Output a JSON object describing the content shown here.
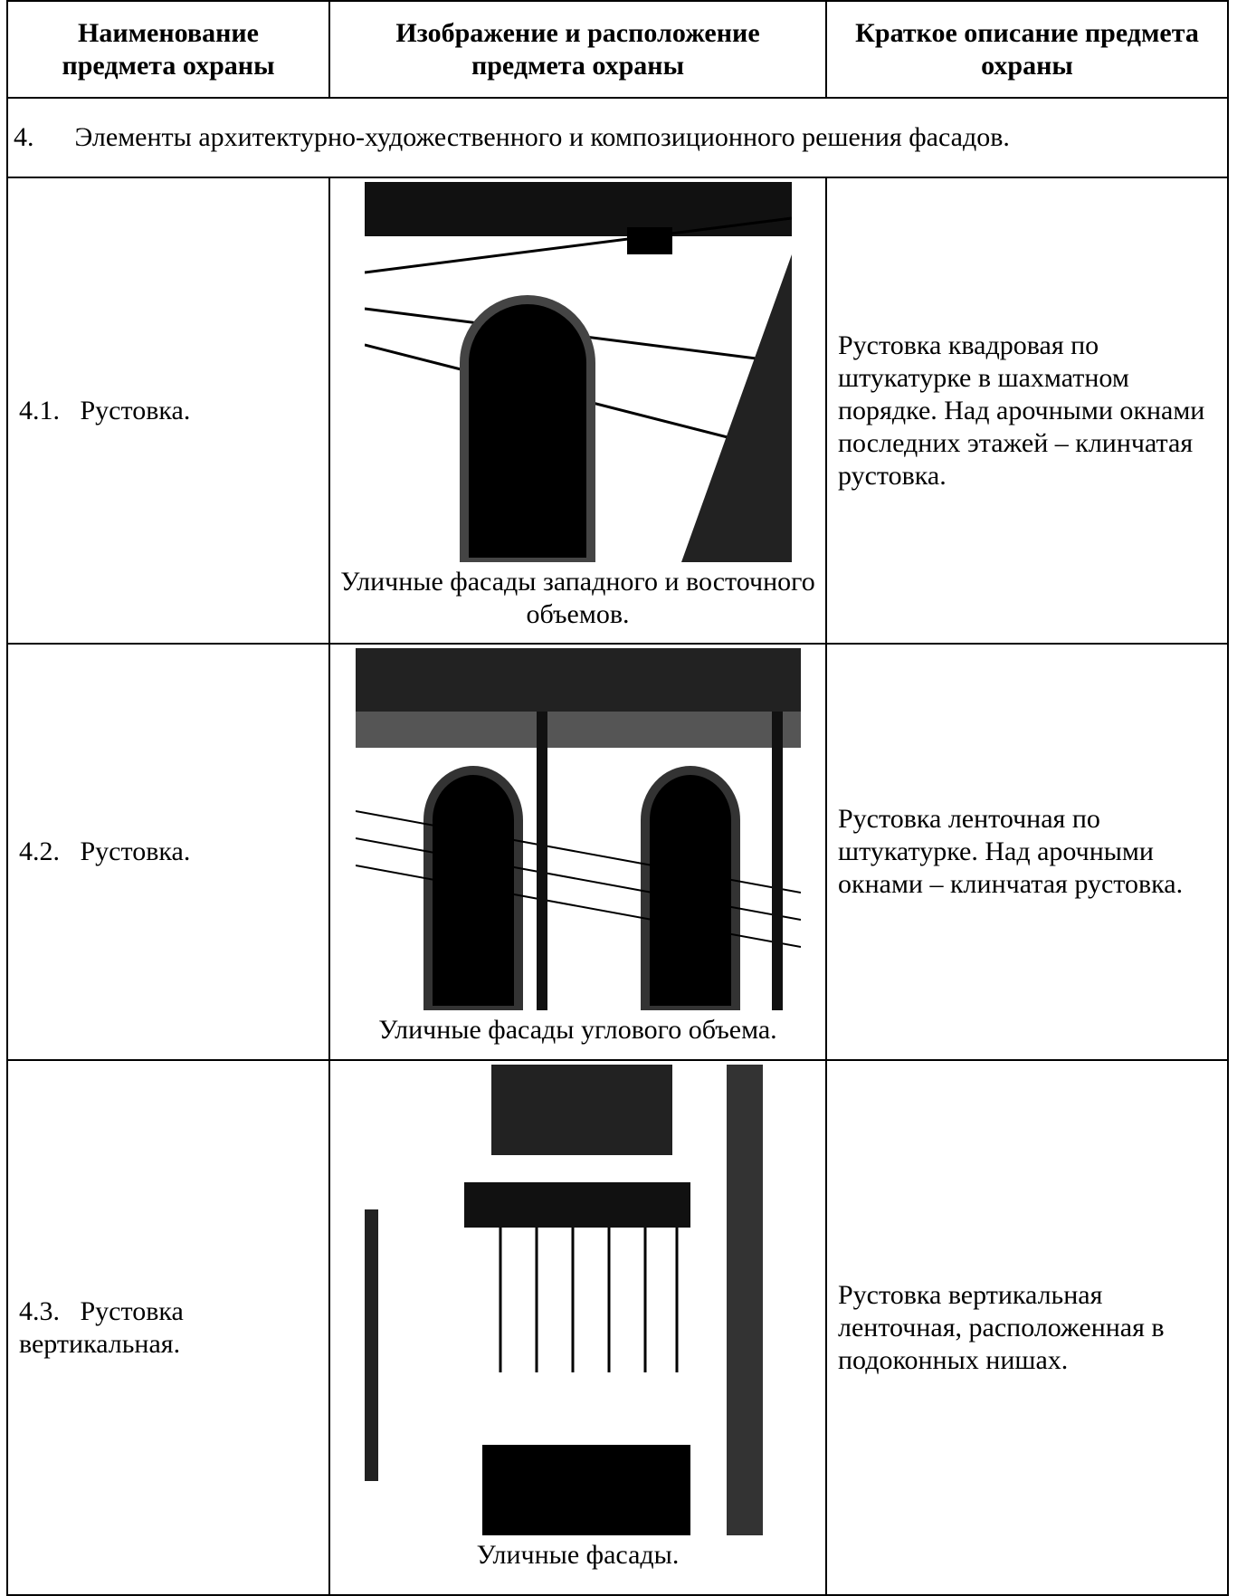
{
  "header": {
    "columns": [
      "Наименование предмета охраны",
      "Изображение и расположение предмета охраны",
      "Краткое описание предмета охраны"
    ]
  },
  "section": {
    "number": "4.",
    "title": "Элементы архитектурно-художественного и композиционного решения фасадов."
  },
  "rows": [
    {
      "number": "4.1.",
      "name": "Рустовка.",
      "caption": "Уличные фасады западного и восточного объемов.",
      "description": "Рустовка квадровая по штукатурке в шахматном порядке. Над арочными окнами последних этажей – клинчатая рустовка."
    },
    {
      "number": "4.2.",
      "name": "Рустовка.",
      "caption": "Уличные фасады углового объема.",
      "description": "Рустовка ленточная по штукатурке. Над арочными окнами – клинчатая рустовка."
    },
    {
      "number": "4.3.",
      "name": "Рустовка вертикальная.",
      "caption": "Уличные фасады.",
      "description": "Рустовка вертикальная ленточная, расположенная в подоконных нишах."
    }
  ]
}
